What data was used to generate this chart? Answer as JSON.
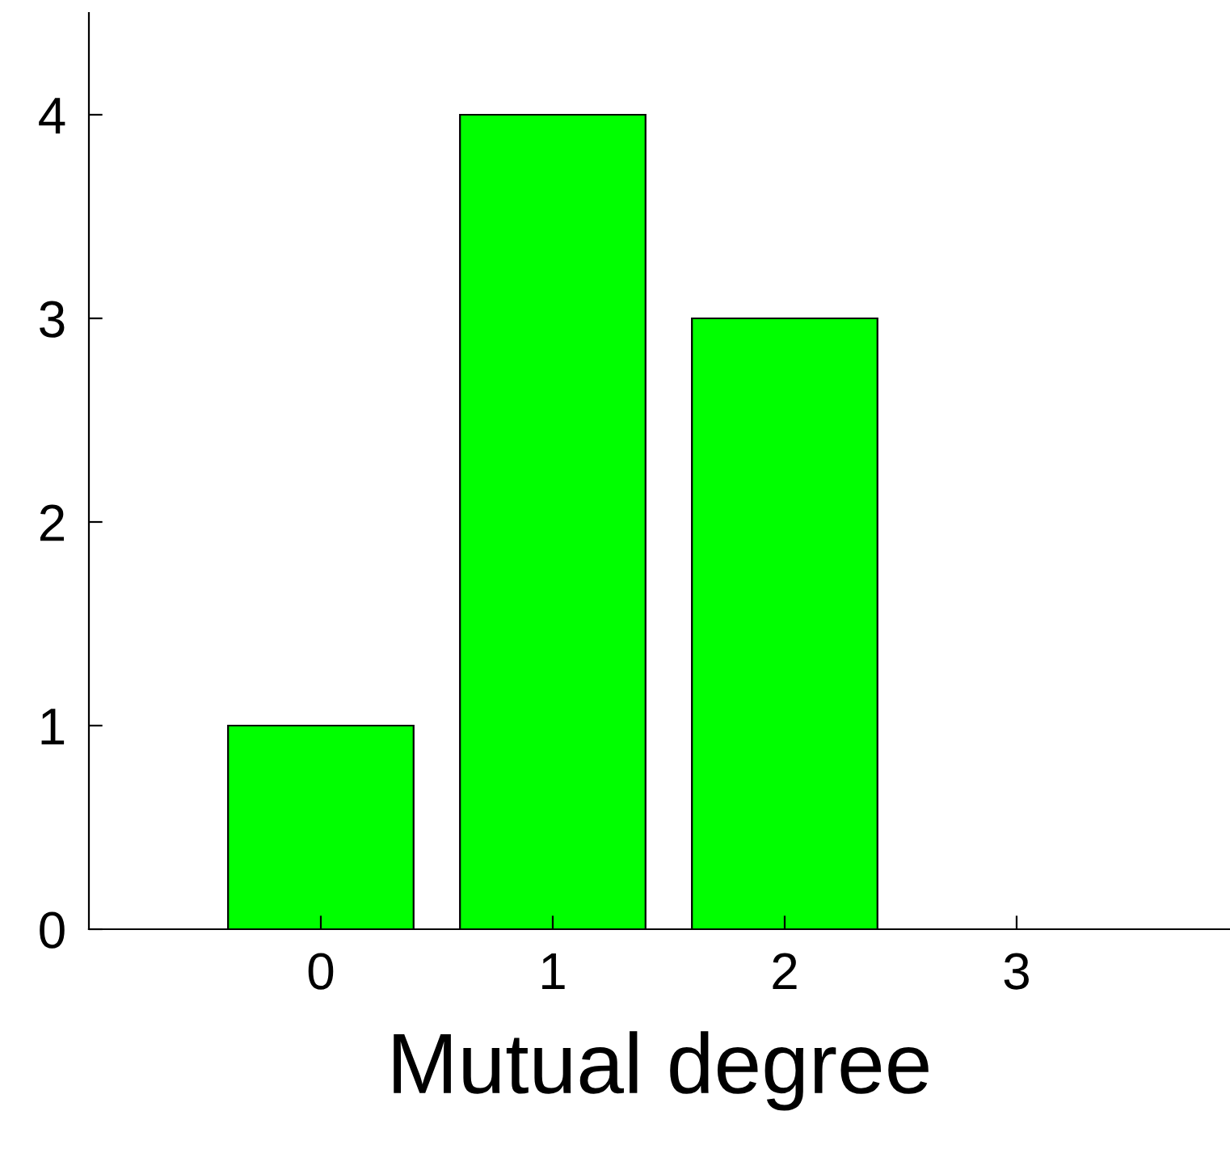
{
  "chart_data": {
    "type": "bar",
    "xlabel": "Mutual degree",
    "x": [
      0,
      1,
      2,
      3
    ],
    "values": [
      1,
      4,
      3,
      0
    ],
    "color": "#00ff00",
    "xlim": [
      -1,
      3.92
    ],
    "xticks": [
      0,
      1,
      2,
      3
    ],
    "ylim": [
      0,
      4.5
    ],
    "yticks": [
      0,
      1,
      2,
      3,
      4
    ],
    "grid": false,
    "legend": false
  }
}
